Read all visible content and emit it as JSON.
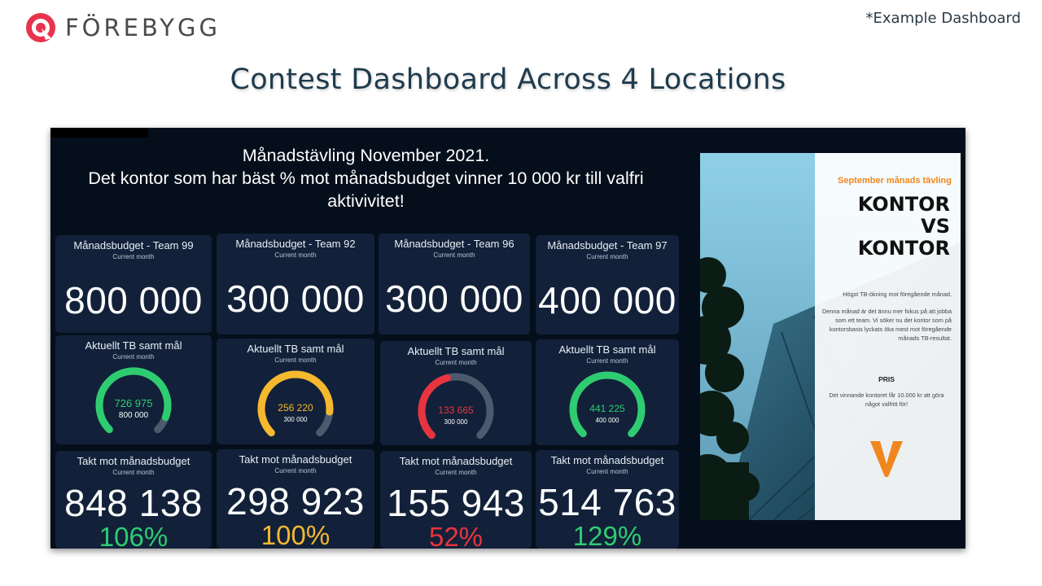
{
  "brand": {
    "name": "FÖREBYGG",
    "logo_color": "#e8344e"
  },
  "example_note": "*Example Dashboard",
  "slide_title": "Contest Dashboard Across 4 Locations",
  "dashboard": {
    "headline_line1": "Månadstävling November 2021.",
    "headline_line2": "Det kontor som har bäst % mot månadsbudget vinner 10 000 kr till valfri aktivivitet!",
    "budget_tiles": [
      {
        "title": "Månadsbudget - Team 99",
        "subtitle": "Current month",
        "value": "800 000"
      },
      {
        "title": "Månadsbudget - Team 92",
        "subtitle": "Current month",
        "value": "300 000"
      },
      {
        "title": "Månadsbudget - Team 96",
        "subtitle": "Current month",
        "value": "300 000"
      },
      {
        "title": "Månadsbudget - Team 97",
        "subtitle": "Current month",
        "value": "400 000"
      }
    ],
    "gauge_tiles": [
      {
        "title": "Aktuellt TB samt mål",
        "subtitle": "Current month",
        "value": "726 975",
        "goal": "800 000",
        "fraction": 0.909,
        "color": "#2ecc71"
      },
      {
        "title": "Aktuellt TB samt mål",
        "subtitle": "Current month",
        "value": "256 220",
        "goal": "300 000",
        "fraction": 0.854,
        "color": "#f5b82e"
      },
      {
        "title": "Aktuellt TB samt mål",
        "subtitle": "Current month",
        "value": "133 665",
        "goal": "300 000",
        "fraction": 0.446,
        "color": "#e8343e"
      },
      {
        "title": "Aktuellt TB samt mål",
        "subtitle": "Current month",
        "value": "441 225",
        "goal": "400 000",
        "fraction": 1.0,
        "color": "#2ecc71"
      }
    ],
    "pace_tiles": [
      {
        "title": "Takt mot månadsbudget",
        "subtitle": "Current month",
        "value": "848 138",
        "percent": "106%",
        "color": "#2ecc71"
      },
      {
        "title": "Takt mot månadsbudget",
        "subtitle": "Current month",
        "value": "298 923",
        "percent": "100%",
        "color": "#f5b82e"
      },
      {
        "title": "Takt mot månadsbudget",
        "subtitle": "Current month",
        "value": "155 943",
        "percent": "52%",
        "color": "#e8343e"
      },
      {
        "title": "Takt mot månadsbudget",
        "subtitle": "Current month",
        "value": "514 763",
        "percent": "129%",
        "color": "#2ecc71"
      }
    ],
    "gauge_track_color": "#4d5a6e"
  },
  "poster": {
    "kicker": "September månads tävling",
    "headline": [
      "KONTOR",
      "VS",
      "KONTOR"
    ],
    "text1": "Högst TB-ökning mot föregående månad.",
    "text2": "Denna månad är det ännu mer fokus på att jobba som ett team. Vi söker nu det kontor som på kontorsbasis lyckats öka mest mot föregående månads TB-resultat.",
    "prize_label": "PRIS",
    "prize_text": "Det vinnande kontoret får 10.000 kr att göra något valfritt för!",
    "accent_color": "#f2861e"
  }
}
